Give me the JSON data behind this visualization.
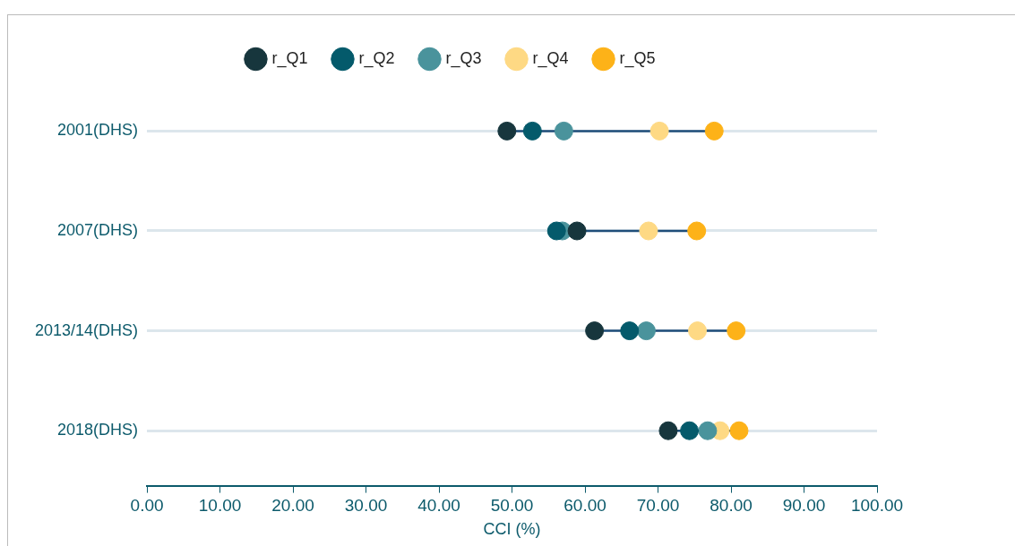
{
  "chart_data": {
    "type": "scatter",
    "orientation": "horizontal",
    "xlabel": "CCI (%)",
    "categories": [
      "2001(DHS)",
      "2007(DHS)",
      "2013/14(DHS)",
      "2018(DHS)"
    ],
    "series": [
      {
        "name": "r_Q1",
        "color": "#17363d",
        "values": [
          49.3,
          58.9,
          61.3,
          71.4
        ]
      },
      {
        "name": "r_Q2",
        "color": "#045a6b",
        "values": [
          52.8,
          56.1,
          66.1,
          74.3
        ]
      },
      {
        "name": "r_Q3",
        "color": "#4a939c",
        "values": [
          57.1,
          56.9,
          68.4,
          76.8
        ]
      },
      {
        "name": "r_Q4",
        "color": "#fed984",
        "values": [
          70.2,
          68.7,
          75.4,
          78.5
        ]
      },
      {
        "name": "r_Q5",
        "color": "#fdb218",
        "values": [
          77.7,
          75.3,
          80.7,
          81.1
        ]
      }
    ],
    "xlim": [
      0,
      100
    ],
    "xticks": [
      {
        "value": 0,
        "label": "0.00"
      },
      {
        "value": 10,
        "label": "10.00"
      },
      {
        "value": 20,
        "label": "20.00"
      },
      {
        "value": 30,
        "label": "30.00"
      },
      {
        "value": 40,
        "label": "40.00"
      },
      {
        "value": 50,
        "label": "50.00"
      },
      {
        "value": 60,
        "label": "60.00"
      },
      {
        "value": 70,
        "label": "70.00"
      },
      {
        "value": 80,
        "label": "80.00"
      },
      {
        "value": 90,
        "label": "90.00"
      },
      {
        "value": 100,
        "label": "100.00"
      }
    ],
    "grid": "y",
    "legend": "top",
    "marker": "circle"
  }
}
